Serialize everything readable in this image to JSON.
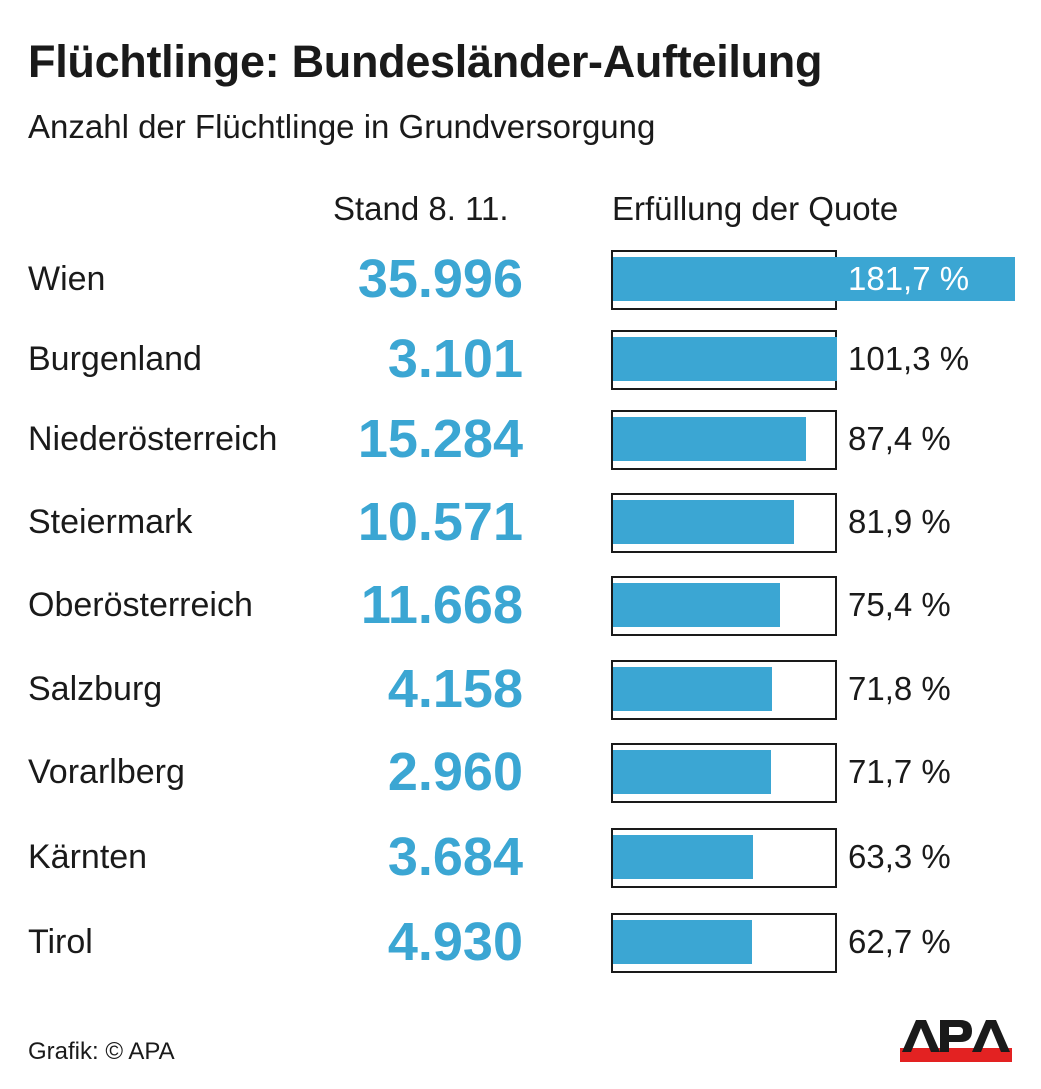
{
  "chart_data": {
    "type": "bar",
    "title": "Flüchtlinge: Bundesländer-Aufteilung",
    "subtitle": "Anzahl der Flüchtlinge in Grundversorgung",
    "count_header": "Stand 8. 11.",
    "bar_header": "Erfüllung der Quote",
    "categories": [
      "Wien",
      "Burgenland",
      "Niederösterreich",
      "Steiermark",
      "Oberösterreich",
      "Salzburg",
      "Vorarlberg",
      "Kärnten",
      "Tirol"
    ],
    "counts": [
      "35.996",
      "3.101",
      "15.284",
      "10.571",
      "11.668",
      "4.158",
      "2.960",
      "3.684",
      "4.930"
    ],
    "values": [
      181.7,
      101.3,
      87.4,
      81.9,
      75.4,
      71.8,
      71.7,
      63.3,
      62.7
    ],
    "value_labels": [
      "181,7 %",
      "101,3 %",
      "87,4 %",
      "81,9 %",
      "75,4 %",
      "71,8 %",
      "71,7 %",
      "63,3 %",
      "62,7 %"
    ],
    "quota_reference": 100,
    "unit": "%"
  },
  "footer": "Grafik: © APA",
  "logo_text": "APA",
  "colors": {
    "bar": "#3ba6d3",
    "count": "#3ba6d3",
    "logo_red": "#e32222",
    "text": "#1a1a1a"
  }
}
